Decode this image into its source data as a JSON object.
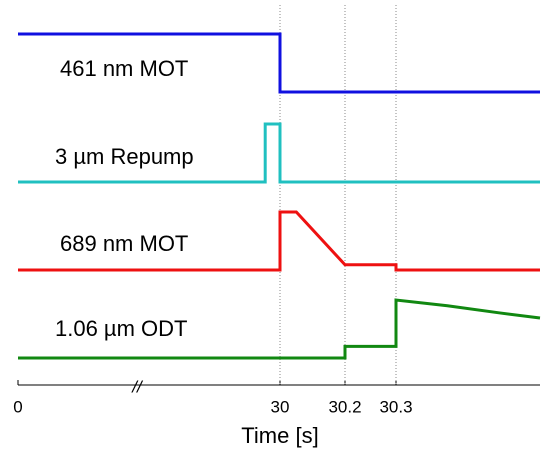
{
  "chart_data": {
    "type": "line",
    "xlabel": "Time [s]",
    "x_break": "//",
    "xlim": [
      0,
      30.58
    ],
    "xticks": [
      0,
      30,
      30.2,
      30.3
    ],
    "ylim": [
      0,
      1
    ],
    "grid": true,
    "series": [
      {
        "name": "461 nm MOT",
        "color": "#1010e0",
        "x": [
          0,
          30,
          30,
          30.58
        ],
        "values": [
          1,
          1,
          0,
          0
        ]
      },
      {
        "name": "3 µm Repump",
        "color": "#20c0c0",
        "x": [
          0,
          28.3,
          28.3,
          30,
          30,
          30.58
        ],
        "values": [
          0,
          0,
          1,
          1,
          0,
          0
        ]
      },
      {
        "name": "689 nm MOT",
        "color": "#ee1111",
        "x": [
          0,
          30,
          30,
          30.05,
          30.2,
          30.3,
          30.3,
          30.58
        ],
        "values": [
          0,
          0,
          1,
          1,
          0.09,
          0.09,
          0,
          0
        ]
      },
      {
        "name": "1.06 µm ODT",
        "color": "#118811",
        "x": [
          0,
          30.2,
          30.2,
          30.3,
          30.3,
          30.4,
          30.5,
          30.58
        ],
        "values": [
          0,
          0,
          0.2,
          0.2,
          1,
          0.9,
          0.78,
          0.69
        ]
      }
    ]
  }
}
